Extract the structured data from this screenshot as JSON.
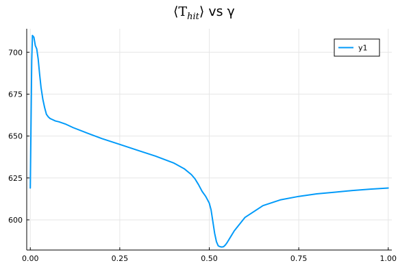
{
  "chart_data": {
    "type": "line",
    "title": {
      "math_text": "⟨T",
      "math_subscript": "hit",
      "math_close": "⟩",
      "suffix": " vs γ"
    },
    "xlabel": "",
    "ylabel": "",
    "xlim": [
      -0.01,
      1.01
    ],
    "ylim": [
      582,
      714
    ],
    "grid": true,
    "legend_position": "top-right",
    "x_ticks": [
      {
        "value": 0.0,
        "label": "0.00"
      },
      {
        "value": 0.25,
        "label": "0.25"
      },
      {
        "value": 0.5,
        "label": "0.50"
      },
      {
        "value": 0.75,
        "label": "0.75"
      },
      {
        "value": 1.0,
        "label": "1.00"
      }
    ],
    "y_ticks": [
      {
        "value": 600,
        "label": "600"
      },
      {
        "value": 625,
        "label": "625"
      },
      {
        "value": 650,
        "label": "650"
      },
      {
        "value": 675,
        "label": "675"
      },
      {
        "value": 700,
        "label": "700"
      }
    ],
    "series": [
      {
        "name": "y1",
        "color": "#009af9",
        "x": [
          0.0,
          0.004,
          0.006,
          0.01,
          0.014,
          0.018,
          0.022,
          0.026,
          0.03,
          0.035,
          0.04,
          0.045,
          0.05,
          0.055,
          0.06,
          0.07,
          0.08,
          0.1,
          0.12,
          0.15,
          0.2,
          0.25,
          0.3,
          0.35,
          0.4,
          0.43,
          0.45,
          0.46,
          0.47,
          0.48,
          0.49,
          0.495,
          0.5,
          0.505,
          0.51,
          0.515,
          0.52,
          0.525,
          0.53,
          0.535,
          0.54,
          0.545,
          0.55,
          0.56,
          0.57,
          0.6,
          0.65,
          0.7,
          0.75,
          0.8,
          0.85,
          0.9,
          0.95,
          1.0
        ],
        "y": [
          619,
          695,
          710,
          709,
          704,
          702,
          696,
          687,
          679,
          672,
          667,
          663,
          661.5,
          660.5,
          660,
          659,
          658.5,
          657,
          655,
          652.5,
          648.5,
          645,
          641.5,
          638,
          634,
          630.5,
          627,
          624.5,
          621,
          617,
          614,
          612,
          610,
          606,
          599,
          592,
          587,
          584.5,
          584,
          583.8,
          584,
          585,
          586.5,
          590,
          593.5,
          601.5,
          608.5,
          612,
          614,
          615.5,
          616.5,
          617.5,
          618.3,
          619
        ]
      }
    ]
  }
}
